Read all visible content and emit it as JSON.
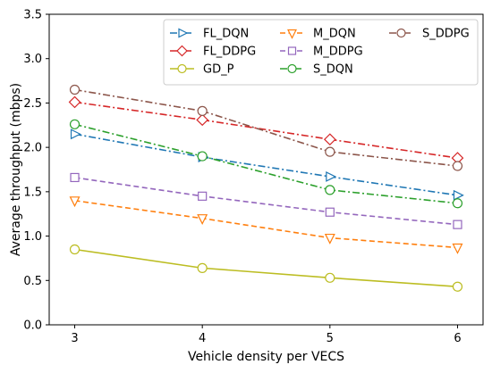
{
  "chart_data": {
    "type": "line",
    "title": "",
    "xlabel": "Vehicle density per VECS",
    "ylabel": "Average throughput (mbps)",
    "x": [
      3,
      4,
      5,
      6
    ],
    "xlim": [
      2.8,
      6.2
    ],
    "ylim": [
      0.0,
      3.5
    ],
    "xticks": [
      "3",
      "4",
      "5",
      "6"
    ],
    "yticks": [
      "0.0",
      "0.5",
      "1.0",
      "1.5",
      "2.0",
      "2.5",
      "3.0",
      "3.5"
    ],
    "grid": false,
    "legend_position": "top-right",
    "series": [
      {
        "name": "FL_DQN",
        "values": [
          2.15,
          1.89,
          1.67,
          1.46
        ],
        "color": "#1f77b4",
        "marker": "triangle-right",
        "dash": "dashdot"
      },
      {
        "name": "FL_DDPG",
        "values": [
          2.51,
          2.31,
          2.09,
          1.88
        ],
        "color": "#d62728",
        "marker": "diamond",
        "dash": "dashdot"
      },
      {
        "name": "GD_P",
        "values": [
          0.85,
          0.64,
          0.53,
          0.43
        ],
        "color": "#bcbd22",
        "marker": "circle",
        "dash": "solid"
      },
      {
        "name": "M_DQN",
        "values": [
          1.4,
          1.2,
          0.98,
          0.87
        ],
        "color": "#ff7f0e",
        "marker": "triangle-down",
        "dash": "dashed"
      },
      {
        "name": "M_DDPG",
        "values": [
          1.66,
          1.45,
          1.27,
          1.13
        ],
        "color": "#9467bd",
        "marker": "square",
        "dash": "dashed"
      },
      {
        "name": "S_DQN",
        "values": [
          2.26,
          1.9,
          1.52,
          1.37
        ],
        "color": "#2ca02c",
        "marker": "circle",
        "dash": "dashdot"
      },
      {
        "name": "S_DDPG",
        "values": [
          2.65,
          2.41,
          1.95,
          1.79
        ],
        "color": "#8c564b",
        "marker": "circle",
        "dash": "dashdot"
      }
    ]
  }
}
